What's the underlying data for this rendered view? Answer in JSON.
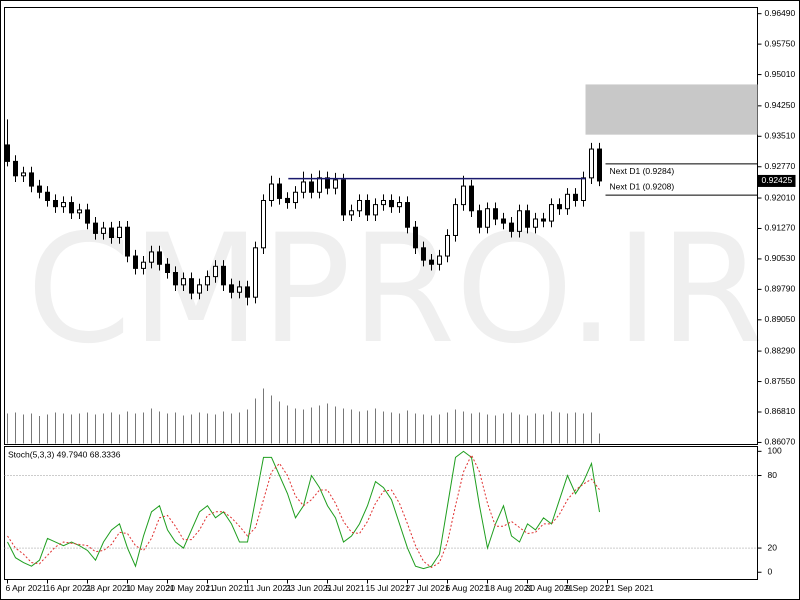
{
  "chart_data": [
    {
      "type": "candlestick",
      "watermark": "CMPRO.IR",
      "xlim": [
        -0.375,
        93.75
      ],
      "ylim": [
        0.8602,
        0.9664
      ],
      "yticks": [
        {
          "value": 0.9649,
          "label": "0.96490"
        },
        {
          "value": 0.9575,
          "label": "0.95750"
        },
        {
          "value": 0.9501,
          "label": "0.95010"
        },
        {
          "value": 0.9425,
          "label": "0.94250"
        },
        {
          "value": 0.9351,
          "label": "0.93510"
        },
        {
          "value": 0.9277,
          "label": "0.92770"
        },
        {
          "value": 0.9201,
          "label": "0.92010"
        },
        {
          "value": 0.9127,
          "label": "0.91270"
        },
        {
          "value": 0.9053,
          "label": "0.90530"
        },
        {
          "value": 0.8979,
          "label": "0.89790"
        },
        {
          "value": 0.8905,
          "label": "0.89050"
        },
        {
          "value": 0.8829,
          "label": "0.88290"
        },
        {
          "value": 0.8755,
          "label": "0.87550"
        },
        {
          "value": 0.8681,
          "label": "0.86810"
        },
        {
          "value": 0.8607,
          "label": "0.86070"
        }
      ],
      "color": "#000000",
      "ohlc": [
        [
          0.933,
          0.9392,
          0.9278,
          0.929
        ],
        [
          0.929,
          0.9305,
          0.924,
          0.9255
        ],
        [
          0.9255,
          0.9277,
          0.924,
          0.9262
        ],
        [
          0.9262,
          0.9277,
          0.9215,
          0.923
        ],
        [
          0.923,
          0.9245,
          0.92,
          0.9215
        ],
        [
          0.9215,
          0.923,
          0.918,
          0.9195
        ],
        [
          0.9195,
          0.921,
          0.9165,
          0.918
        ],
        [
          0.918,
          0.9205,
          0.9165,
          0.919
        ],
        [
          0.919,
          0.9205,
          0.915,
          0.9165
        ],
        [
          0.9165,
          0.9187,
          0.915,
          0.9172
        ],
        [
          0.9172,
          0.9187,
          0.9125,
          0.914
        ],
        [
          0.914,
          0.9155,
          0.91,
          0.9115
        ],
        [
          0.9115,
          0.9143,
          0.91,
          0.9128
        ],
        [
          0.9128,
          0.9143,
          0.909,
          0.9105
        ],
        [
          0.9105,
          0.9145,
          0.909,
          0.913
        ],
        [
          0.913,
          0.9145,
          0.9045,
          0.906
        ],
        [
          0.906,
          0.9075,
          0.9015,
          0.903
        ],
        [
          0.903,
          0.906,
          0.9015,
          0.9045
        ],
        [
          0.9045,
          0.9085,
          0.903,
          0.907
        ],
        [
          0.907,
          0.9085,
          0.9025,
          0.904
        ],
        [
          0.904,
          0.9055,
          0.9005,
          0.902
        ],
        [
          0.902,
          0.9035,
          0.8975,
          0.899
        ],
        [
          0.899,
          0.902,
          0.8975,
          0.9005
        ],
        [
          0.9005,
          0.902,
          0.8955,
          0.897
        ],
        [
          0.897,
          0.9005,
          0.8955,
          0.899
        ],
        [
          0.899,
          0.9025,
          0.8975,
          0.901
        ],
        [
          0.901,
          0.905,
          0.8995,
          0.9035
        ],
        [
          0.9035,
          0.905,
          0.8975,
          0.899
        ],
        [
          0.899,
          0.9005,
          0.8957,
          0.8972
        ],
        [
          0.8972,
          0.9,
          0.8957,
          0.8985
        ],
        [
          0.8985,
          0.9,
          0.894,
          0.896
        ],
        [
          0.896,
          0.9095,
          0.8945,
          0.908
        ],
        [
          0.908,
          0.921,
          0.9065,
          0.9195
        ],
        [
          0.9195,
          0.9255,
          0.918,
          0.9235
        ],
        [
          0.9235,
          0.925,
          0.9185,
          0.92
        ],
        [
          0.92,
          0.9215,
          0.9175,
          0.919
        ],
        [
          0.919,
          0.923,
          0.9175,
          0.9215
        ],
        [
          0.9215,
          0.9265,
          0.92,
          0.924
        ],
        [
          0.924,
          0.926,
          0.92,
          0.9215
        ],
        [
          0.9215,
          0.9268,
          0.92,
          0.925
        ],
        [
          0.925,
          0.9265,
          0.921,
          0.9225
        ],
        [
          0.9225,
          0.9262,
          0.921,
          0.9245
        ],
        [
          0.9245,
          0.926,
          0.9145,
          0.916
        ],
        [
          0.916,
          0.9185,
          0.9145,
          0.917
        ],
        [
          0.917,
          0.921,
          0.9155,
          0.9195
        ],
        [
          0.9195,
          0.921,
          0.9145,
          0.916
        ],
        [
          0.916,
          0.92,
          0.9145,
          0.9185
        ],
        [
          0.9185,
          0.921,
          0.917,
          0.9195
        ],
        [
          0.9195,
          0.921,
          0.9165,
          0.918
        ],
        [
          0.918,
          0.9205,
          0.9165,
          0.919
        ],
        [
          0.919,
          0.9205,
          0.9115,
          0.913
        ],
        [
          0.913,
          0.9145,
          0.9065,
          0.908
        ],
        [
          0.908,
          0.9095,
          0.9035,
          0.905
        ],
        [
          0.905,
          0.9065,
          0.9025,
          0.904
        ],
        [
          0.904,
          0.9075,
          0.9025,
          0.906
        ],
        [
          0.906,
          0.9125,
          0.9045,
          0.911
        ],
        [
          0.911,
          0.92,
          0.9095,
          0.9185
        ],
        [
          0.9185,
          0.9255,
          0.917,
          0.923
        ],
        [
          0.923,
          0.9245,
          0.9155,
          0.917
        ],
        [
          0.917,
          0.9185,
          0.9115,
          0.913
        ],
        [
          0.913,
          0.919,
          0.9115,
          0.9175
        ],
        [
          0.9175,
          0.919,
          0.9135,
          0.915
        ],
        [
          0.915,
          0.9165,
          0.9125,
          0.914
        ],
        [
          0.914,
          0.9155,
          0.9105,
          0.912
        ],
        [
          0.912,
          0.9185,
          0.9105,
          0.917
        ],
        [
          0.917,
          0.9185,
          0.9115,
          0.913
        ],
        [
          0.913,
          0.9165,
          0.9115,
          0.915
        ],
        [
          0.915,
          0.9165,
          0.913,
          0.9145
        ],
        [
          0.9145,
          0.92,
          0.913,
          0.9185
        ],
        [
          0.9185,
          0.92,
          0.916,
          0.9175
        ],
        [
          0.9175,
          0.9225,
          0.916,
          0.921
        ],
        [
          0.921,
          0.9225,
          0.918,
          0.9195
        ],
        [
          0.9195,
          0.9265,
          0.918,
          0.925
        ],
        [
          0.925,
          0.9335,
          0.9235,
          0.932
        ],
        [
          0.932,
          0.9335,
          0.923,
          0.92425
        ]
      ],
      "volume": [
        60000,
        62000,
        58000,
        60000,
        55000,
        58000,
        62000,
        60000,
        58000,
        60000,
        62000,
        58000,
        60000,
        62000,
        58000,
        64000,
        60000,
        62000,
        70000,
        64000,
        60000,
        62000,
        56000,
        58000,
        62000,
        60000,
        58000,
        64000,
        60000,
        62000,
        68000,
        90000,
        110000,
        96000,
        84000,
        76000,
        70000,
        68000,
        72000,
        76000,
        80000,
        74000,
        70000,
        68000,
        64000,
        66000,
        70000,
        64000,
        62000,
        60000,
        66000,
        60000,
        58000,
        56000,
        58000,
        62000,
        68000,
        64000,
        60000,
        62000,
        58000,
        56000,
        60000,
        62000,
        58000,
        56000,
        60000,
        58000,
        64000,
        62000,
        60000,
        62000,
        60000,
        62000,
        20000
      ],
      "trendline": {
        "value": 0.9248,
        "from": 35.1,
        "to": 72.25,
        "color": "#1a1a6e"
      },
      "zone": {
        "top": 0.9477,
        "bottom": 0.9355,
        "from": 72.25,
        "color": "#c8c8c8"
      },
      "levels": [
        {
          "value": 0.9284,
          "label": "Next D1 (0.9284)",
          "from": 74.75
        },
        {
          "value": 0.9208,
          "label": "Next D1 (0.9208)",
          "from": 74.75
        }
      ],
      "current_price": {
        "value": 0.92425,
        "label": "0.92425"
      }
    },
    {
      "type": "line",
      "title": "Stoch(5,3,3) 49.7940 68.3336",
      "xlim": [
        -0.375,
        93.75
      ],
      "ylim": [
        -6,
        104
      ],
      "yticks": [
        100,
        80,
        20,
        0
      ],
      "levels": [
        80,
        20
      ],
      "xticks": [
        {
          "value": 0,
          "label": "6 Apr 2021"
        },
        {
          "value": 5,
          "label": "16 Apr 2021"
        },
        {
          "value": 10,
          "label": "28 Apr 2021"
        },
        {
          "value": 15,
          "label": "10 May 2021"
        },
        {
          "value": 20,
          "label": "20 May 2021"
        },
        {
          "value": 25,
          "label": "1 Jun 2021"
        },
        {
          "value": 30,
          "label": "11 Jun 2021"
        },
        {
          "value": 35,
          "label": "23 Jun 2021"
        },
        {
          "value": 40,
          "label": "5 Jul 2021"
        },
        {
          "value": 45,
          "label": "15 Jul 2021"
        },
        {
          "value": 50,
          "label": "27 Jul 2021"
        },
        {
          "value": 55,
          "label": "6 Aug 2021"
        },
        {
          "value": 60,
          "label": "18 Aug 2021"
        },
        {
          "value": 65,
          "label": "30 Aug 2021"
        },
        {
          "value": 70,
          "label": "9 Sep 2021"
        },
        {
          "value": 75,
          "label": "21 Sep 2021"
        }
      ],
      "series": [
        {
          "color": "#1e9e1e",
          "dash": false,
          "values": [
            25,
            12,
            8,
            5,
            10,
            28,
            25,
            22,
            25,
            22,
            18,
            10,
            25,
            35,
            40,
            20,
            5,
            30,
            50,
            55,
            35,
            25,
            20,
            35,
            50,
            55,
            45,
            50,
            40,
            25,
            25,
            60,
            95,
            95,
            80,
            65,
            45,
            55,
            80,
            70,
            55,
            45,
            25,
            30,
            40,
            55,
            75,
            70,
            60,
            40,
            20,
            5,
            3,
            5,
            15,
            55,
            95,
            100,
            95,
            55,
            20,
            40,
            55,
            30,
            25,
            40,
            35,
            45,
            40,
            60,
            80,
            65,
            75,
            90,
            49.794
          ]
        },
        {
          "color": "#e03030",
          "dash": true,
          "values": [
            30,
            20,
            15,
            8,
            7,
            14,
            21,
            25,
            24,
            23,
            22,
            17,
            18,
            23,
            33,
            32,
            22,
            18,
            28,
            45,
            47,
            38,
            27,
            27,
            35,
            47,
            50,
            50,
            45,
            38,
            30,
            37,
            60,
            83,
            90,
            80,
            63,
            55,
            60,
            68,
            68,
            57,
            42,
            33,
            32,
            42,
            57,
            67,
            68,
            57,
            40,
            22,
            9,
            4,
            8,
            25,
            55,
            83,
            97,
            83,
            57,
            38,
            38,
            42,
            37,
            32,
            33,
            40,
            40,
            48,
            60,
            68,
            73,
            77,
            68.3336
          ]
        }
      ]
    }
  ]
}
